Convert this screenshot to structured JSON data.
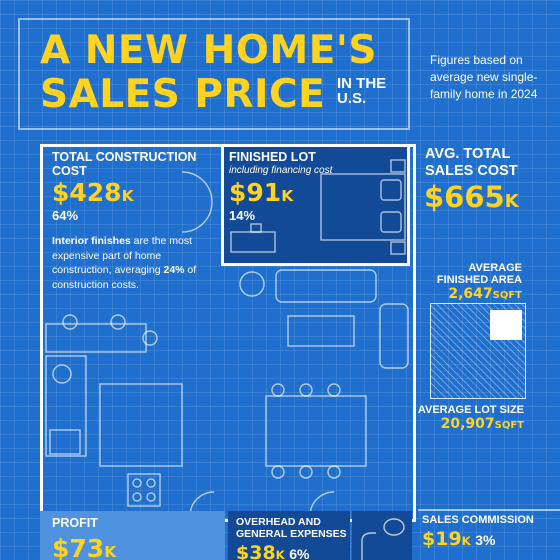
{
  "title": {
    "line1": "A NEW HOME'S",
    "line2": "SALES PRICE",
    "suffix_line1": "IN THE",
    "suffix_line2": "U.S."
  },
  "figures_note": "Figures based on average new single-family home in 2024",
  "construction": {
    "label_line1": "TOTAL CONSTRUCTION",
    "label_line2": "COST",
    "value": "$428",
    "unit": "K",
    "percent": "64%",
    "note_bold1": "Interior finishes",
    "note_mid": " are the most expensive part of home construction, averaging ",
    "note_bold2": "24%",
    "note_end": " of construction costs."
  },
  "lot": {
    "label": "FINISHED LOT",
    "sublabel": "including financing cost",
    "value": "$91",
    "unit": "K",
    "percent": "14%"
  },
  "avg_total": {
    "label_line1": "AVG. TOTAL",
    "label_line2": "SALES COST",
    "value": "$665",
    "unit": "K"
  },
  "finished_area": {
    "label_line1": "AVERAGE",
    "label_line2": "FINISHED AREA",
    "value": "2,647",
    "unit": "SQFT"
  },
  "lot_size": {
    "label": "AVERAGE LOT SIZE",
    "value": "20,907",
    "unit": "SQFT"
  },
  "profit": {
    "label": "PROFIT",
    "value": "$73",
    "unit": "K"
  },
  "overhead": {
    "label_line1": "OVERHEAD AND",
    "label_line2": "GENERAL EXPENSES",
    "value": "$38",
    "unit": "K",
    "percent": "6%"
  },
  "commission": {
    "label": "SALES COMMISSION",
    "value": "$19",
    "unit": "K",
    "percent": "3%"
  },
  "colors": {
    "background": "#1f6fcf",
    "accent": "#ffd31f",
    "dark_panel": "#134a97",
    "light_panel": "#4f93de"
  }
}
